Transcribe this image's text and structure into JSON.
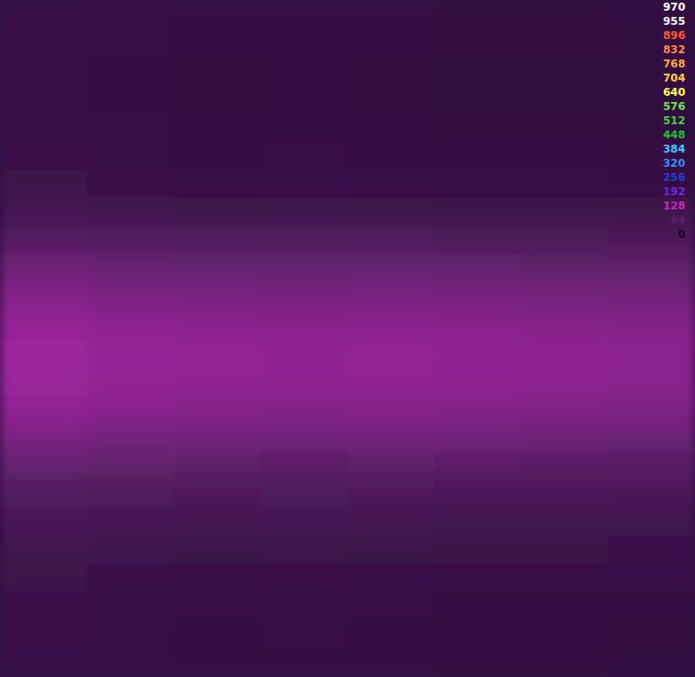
{
  "chart_data": {
    "type": "heatmap",
    "tick_labels": false,
    "zlim": [
      0,
      970
    ],
    "colorbar": {
      "ticks": [
        970,
        955,
        896,
        832,
        768,
        704,
        640,
        576,
        512,
        448,
        384,
        320,
        256,
        192,
        128,
        64,
        0
      ],
      "colors": [
        "#ffffff",
        "#f4f4f4",
        "#ff5a30",
        "#ff8a40",
        "#ffa838",
        "#ffd040",
        "#ffff50",
        "#70e040",
        "#40d040",
        "#20c030",
        "#40c8ff",
        "#3090ff",
        "#2040d0",
        "#6a28e0",
        "#c828c0",
        "#5c2068",
        "#160024"
      ]
    },
    "cells": [
      [
        32,
        30,
        28,
        29,
        28,
        27,
        27,
        26
      ],
      [
        32,
        30,
        28,
        29,
        28,
        27,
        27,
        26
      ],
      [
        31,
        29,
        27,
        28,
        27,
        26,
        26,
        25
      ],
      [
        31,
        29,
        27,
        28,
        27,
        26,
        26,
        25
      ],
      [
        32,
        30,
        28,
        29,
        28,
        27,
        27,
        26
      ],
      [
        33,
        31,
        29,
        30,
        29,
        28,
        28,
        27
      ],
      [
        35,
        33,
        31,
        32,
        31,
        30,
        30,
        29
      ],
      [
        42,
        40,
        38,
        39,
        38,
        37,
        37,
        36
      ],
      [
        56,
        54,
        52,
        53,
        52,
        51,
        51,
        50
      ],
      [
        75,
        71,
        69,
        68,
        69,
        68,
        66,
        65
      ],
      [
        87,
        83,
        81,
        80,
        81,
        80,
        78,
        77
      ],
      [
        97,
        93,
        91,
        90,
        91,
        90,
        88,
        87
      ],
      [
        102,
        98,
        96,
        95,
        96,
        95,
        93,
        92
      ],
      [
        101,
        97,
        95,
        94,
        95,
        94,
        92,
        91
      ],
      [
        95,
        91,
        89,
        88,
        89,
        88,
        86,
        85
      ],
      [
        83,
        79,
        77,
        76,
        77,
        76,
        74,
        73
      ],
      [
        69,
        65,
        63,
        62,
        63,
        62,
        60,
        59
      ],
      [
        54,
        52,
        50,
        51,
        50,
        49,
        49,
        48
      ],
      [
        46,
        44,
        42,
        43,
        42,
        41,
        41,
        40
      ],
      [
        40,
        38,
        36,
        37,
        36,
        35,
        35,
        34
      ],
      [
        36,
        34,
        32,
        33,
        32,
        31,
        31,
        30
      ],
      [
        34,
        32,
        30,
        31,
        30,
        29,
        29,
        28
      ],
      [
        33,
        31,
        29,
        30,
        29,
        28,
        28,
        27
      ],
      [
        32,
        30,
        28,
        29,
        28,
        27,
        27,
        26
      ]
    ]
  }
}
